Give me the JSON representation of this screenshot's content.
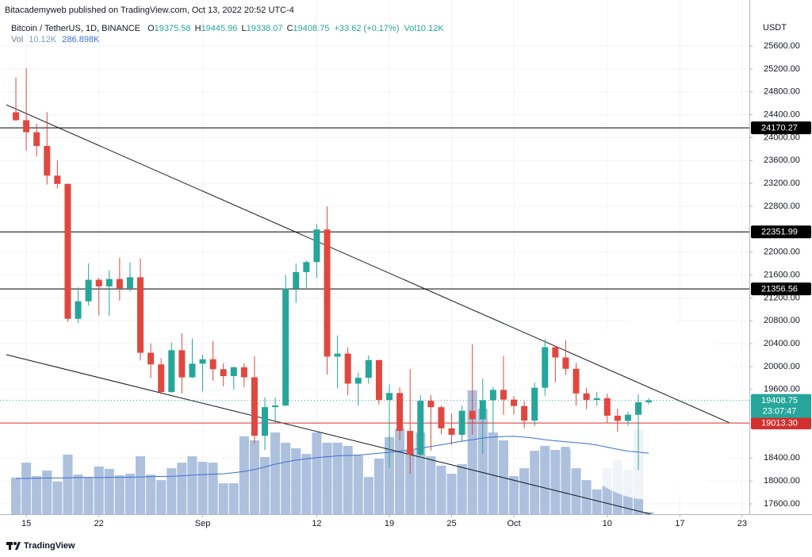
{
  "chart_data": {
    "type": "candlestick",
    "title": "Bitacademyweb published on TradingView.com, Oct 13, 2022 20:52 UTC-4",
    "legend": {
      "symbol": "Bitcoin / TetherUS, 1D, BINANCE",
      "ohlc_prefixes": [
        "O",
        "H",
        "L",
        "C"
      ],
      "change": "+33.62 (+0.17%)",
      "vol_label": "Vol",
      "vol_value": "10.12K",
      "vol_ma_value": "286.898K"
    },
    "unit": "USDT",
    "countdown": "23:07:47",
    "footer": "TradingView",
    "up_color": "#26a69a",
    "down_color": "#e0483f",
    "volume_color": "#9fb6d8",
    "volume_ma_color": "#3d6fd6",
    "open": [
      24443,
      24305,
      24094,
      23855,
      23336,
      23191,
      20834,
      21140,
      21516,
      21400,
      21529,
      21368,
      21560,
      20241,
      20037,
      19555,
      20285,
      19811,
      20050,
      20127,
      19953,
      19832,
      19986,
      19812,
      18790,
      19290,
      19320,
      21360,
      21650,
      21826,
      22395,
      20173,
      20226,
      19701,
      19803,
      20113,
      19416,
      19537,
      18875,
      18461,
      19401,
      19289,
      18920,
      18807,
      19227,
      19079,
      19412,
      19591,
      19422,
      19310,
      19056,
      19629,
      20337,
      20158,
      19960,
      19530,
      19417,
      19446,
      19141,
      19051,
      19157,
      19375.58
    ],
    "high": [
      25047,
      25211,
      24247,
      24446,
      23600,
      23200,
      21382,
      21800,
      21548,
      21684,
      21900,
      21819,
      21886,
      20402,
      20144,
      20420,
      20580,
      20488,
      20208,
      20444,
      20055,
      20000,
      20058,
      20180,
      19460,
      19457,
      21600,
      21800,
      21850,
      22488,
      22799,
      20541,
      20330,
      19890,
      20192,
      20115,
      19688,
      19634,
      19956,
      19500,
      19500,
      19316,
      19180,
      19316,
      20385,
      19790,
      19645,
      20185,
      19484,
      19395,
      19719,
      20475,
      20365,
      20456,
      20060,
      19627,
      19558,
      19525,
      19264,
      19214,
      19513,
      19445.96
    ],
    "low": [
      24288,
      23773,
      23671,
      23180,
      23111,
      20783,
      20761,
      21068,
      20890,
      20890,
      21153,
      21310,
      20107,
      19800,
      19520,
      19540,
      19526,
      19800,
      19565,
      19754,
      19655,
      19600,
      19633,
      18649,
      18540,
      19000,
      19300,
      21111,
      21370,
      21550,
      19860,
      19617,
      19497,
      19320,
      19700,
      19338,
      18232,
      18711,
      18125,
      18400,
      18531,
      18817,
      18630,
      18680,
      18813,
      18471,
      18843,
      19155,
      19159,
      18920,
      18959,
      19490,
      19730,
      19854,
      19320,
      19254,
      19316,
      19020,
      18860,
      18965,
      18190,
      19338.07
    ],
    "close": [
      24305,
      24094,
      23855,
      23336,
      23191,
      20834,
      21140,
      21516,
      21400,
      21529,
      21368,
      21560,
      20241,
      20037,
      19555,
      20285,
      19811,
      20050,
      20127,
      19953,
      19832,
      19986,
      19812,
      18790,
      19290,
      19320,
      21360,
      21650,
      21826,
      22395,
      20173,
      20226,
      19701,
      19803,
      20113,
      19416,
      19537,
      18875,
      18461,
      19401,
      19289,
      18920,
      18807,
      19227,
      19079,
      19412,
      19591,
      19422,
      19310,
      19056,
      19629,
      20337,
      20158,
      19960,
      19530,
      19417,
      19446,
      19141,
      19051,
      19157,
      19375,
      19408.75
    ],
    "volume": [
      172,
      242,
      179,
      205,
      153,
      280,
      186,
      175,
      224,
      213,
      183,
      190,
      272,
      186,
      160,
      216,
      242,
      272,
      246,
      242,
      145,
      145,
      366,
      347,
      269,
      384,
      336,
      310,
      283,
      384,
      336,
      336,
      321,
      276,
      175,
      261,
      362,
      403,
      302,
      384,
      272,
      228,
      190,
      235,
      582,
      496,
      384,
      347,
      179,
      216,
      298,
      321,
      302,
      317,
      216,
      160,
      116,
      216,
      254,
      209,
      399,
      10.12
    ],
    "volume_ma": [
      168,
      168,
      169,
      170,
      170,
      171,
      172,
      172,
      172,
      173,
      173,
      174,
      175,
      176,
      177,
      178,
      180,
      183,
      186,
      188,
      190,
      195,
      201,
      210,
      222,
      235,
      245,
      254,
      260,
      266,
      270,
      274,
      276,
      278,
      282,
      286,
      291,
      296,
      302,
      310,
      318,
      326,
      335,
      343,
      350,
      358,
      362,
      365,
      366,
      362,
      357,
      350,
      345,
      340,
      336,
      332,
      325,
      315,
      305,
      296,
      292,
      286.898
    ],
    "volume_lim": [
      0,
      2335
    ],
    "xlim": [
      -0.92,
      70.7
    ],
    "xticks": [
      {
        "value": 1,
        "label": "15"
      },
      {
        "value": 8,
        "label": "22"
      },
      {
        "value": 18,
        "label": "Sep"
      },
      {
        "value": 29,
        "label": "12"
      },
      {
        "value": 36,
        "label": "19"
      },
      {
        "value": 42,
        "label": "25"
      },
      {
        "value": 48,
        "label": "Oct"
      },
      {
        "value": 57,
        "label": "10"
      },
      {
        "value": 64,
        "label": "17"
      },
      {
        "value": 70,
        "label": "23"
      }
    ],
    "ylim": [
      17420,
      26100
    ],
    "yticks": [
      {
        "value": 25600,
        "label": "25600.00"
      },
      {
        "value": 25200,
        "label": "25200.00"
      },
      {
        "value": 24800,
        "label": "24800.00"
      },
      {
        "value": 24400,
        "label": "24400.00"
      },
      {
        "value": 24000,
        "label": "24000.00"
      },
      {
        "value": 23600,
        "label": "23600.00"
      },
      {
        "value": 23200,
        "label": "23200.00"
      },
      {
        "value": 22800,
        "label": "22800.00"
      },
      {
        "value": 22000,
        "label": "22000.00"
      },
      {
        "value": 21600,
        "label": "21600.00"
      },
      {
        "value": 21200,
        "label": "21200.00"
      },
      {
        "value": 20800,
        "label": "20800.00"
      },
      {
        "value": 20400,
        "label": "20400.00"
      },
      {
        "value": 20000,
        "label": "20000.00"
      },
      {
        "value": 19600,
        "label": "19600.00"
      },
      {
        "value": 18400,
        "label": "18400.00"
      },
      {
        "value": 18000,
        "label": "18000.00"
      },
      {
        "value": 17600,
        "label": "17600.00"
      }
    ],
    "grid": true,
    "price_lines": [
      {
        "value": 24170.27,
        "color": "#000000"
      },
      {
        "value": 22351.99,
        "color": "#000000"
      },
      {
        "value": 21356.56,
        "color": "#000000"
      },
      {
        "value": 19013.3,
        "label": "19013.30",
        "color": "#d32f2f"
      }
    ],
    "trend_lines": [
      {
        "points": [
          [
            -0.92,
            24574
          ],
          [
            68.8,
            19015
          ]
        ]
      },
      {
        "points": [
          [
            -0.92,
            20207
          ],
          [
            61.2,
            17420
          ]
        ]
      }
    ]
  }
}
